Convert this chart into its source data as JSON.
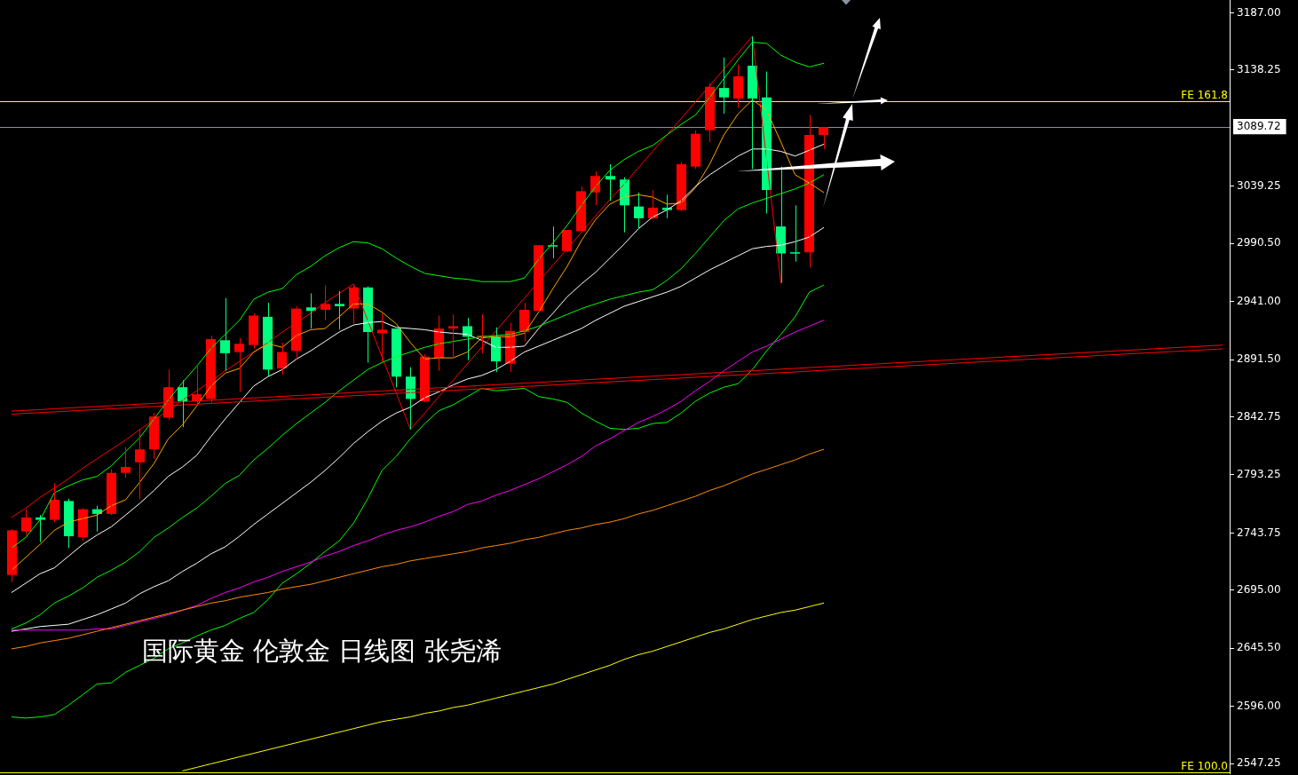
{
  "chart_data": {
    "type": "candlestick",
    "annotations": [
      "国际黄金 伦敦金 日线图 张尧浠"
    ],
    "tick_labels": "y",
    "marker": "none",
    "categories": [
      null,
      null,
      null,
      null,
      null,
      null,
      null,
      null,
      null,
      null,
      null,
      null,
      null,
      null,
      null,
      null,
      null,
      null,
      null,
      null,
      null,
      null,
      null,
      null,
      null,
      null,
      null,
      null,
      null,
      null,
      null,
      null,
      null,
      null,
      null,
      null,
      null,
      null,
      null,
      null,
      null,
      null,
      null,
      null,
      null,
      null,
      null,
      null,
      null,
      null,
      null,
      null,
      null,
      null,
      null,
      null,
      null,
      null,
      null,
      null,
      null,
      null,
      null,
      null,
      null,
      null,
      null,
      null,
      null,
      null,
      null,
      null,
      null,
      null,
      null,
      null,
      null,
      null,
      null,
      null,
      null,
      null,
      null,
      null,
      null,
      null
    ],
    "ohlc": [
      [
        2708,
        2747,
        2702,
        2746
      ],
      [
        2745,
        2764,
        2742,
        2757
      ],
      [
        2757,
        2759,
        2736,
        2755
      ],
      [
        2755,
        2786,
        2753,
        2772
      ],
      [
        2771,
        2773,
        2731,
        2741
      ],
      [
        2740,
        2765,
        2737,
        2764
      ],
      [
        2764,
        2767,
        2745,
        2760
      ],
      [
        2760,
        2798,
        2759,
        2795
      ],
      [
        2795,
        2817,
        2791,
        2800
      ],
      [
        2804,
        2832,
        2773,
        2815
      ],
      [
        2815,
        2846,
        2807,
        2843
      ],
      [
        2842,
        2883,
        2840,
        2868
      ],
      [
        2868,
        2874,
        2834,
        2856
      ],
      [
        2856,
        2887,
        2853,
        2862
      ],
      [
        2858,
        2912,
        2855,
        2909
      ],
      [
        2908,
        2944,
        2882,
        2897
      ],
      [
        2898,
        2910,
        2864,
        2905
      ],
      [
        2904,
        2931,
        2901,
        2929
      ],
      [
        2928,
        2940,
        2877,
        2883
      ],
      [
        2884,
        2906,
        2879,
        2898
      ],
      [
        2899,
        2937,
        2892,
        2935
      ],
      [
        2936,
        2948,
        2918,
        2933
      ],
      [
        2934,
        2955,
        2925,
        2939
      ],
      [
        2939,
        2950,
        2917,
        2937
      ],
      [
        2935,
        2956,
        2922,
        2953
      ],
      [
        2953,
        2954,
        2889,
        2915
      ],
      [
        2914,
        2931,
        2890,
        2917
      ],
      [
        2918,
        2918,
        2868,
        2877
      ],
      [
        2877,
        2885,
        2832,
        2858
      ],
      [
        2856,
        2896,
        2855,
        2894
      ],
      [
        2893,
        2929,
        2882,
        2918
      ],
      [
        2918,
        2930,
        2894,
        2920
      ],
      [
        2920,
        2927,
        2891,
        2911
      ],
      [
        2911,
        2930,
        2897,
        2912
      ],
      [
        2911,
        2919,
        2881,
        2890
      ],
      [
        2888,
        2923,
        2881,
        2916
      ],
      [
        2915,
        2940,
        2907,
        2934
      ],
      [
        2933,
        2989,
        2932,
        2989
      ],
      [
        2989,
        3005,
        2978,
        2988
      ],
      [
        2984,
        3002,
        2983,
        3002
      ],
      [
        3001,
        3039,
        3001,
        3035
      ],
      [
        3034,
        3052,
        3023,
        3048
      ],
      [
        3048,
        3058,
        3027,
        3045
      ],
      [
        3045,
        3047,
        3000,
        3023
      ],
      [
        3022,
        3034,
        3003,
        3012
      ],
      [
        3012,
        3036,
        3011,
        3021
      ],
      [
        3021,
        3032,
        3012,
        3019
      ],
      [
        3019,
        3060,
        3018,
        3058
      ],
      [
        3056,
        3087,
        3054,
        3084
      ],
      [
        3087,
        3127,
        3077,
        3124
      ],
      [
        3123,
        3149,
        3101,
        3115
      ],
      [
        3114,
        3143,
        3106,
        3133
      ],
      [
        3142,
        3167,
        3054,
        3114
      ],
      [
        3115,
        3137,
        3016,
        3036
      ],
      [
        3005,
        3056,
        2957,
        2982
      ],
      [
        2983,
        3023,
        2975,
        2982
      ],
      [
        2983,
        3100,
        2970,
        3083
      ],
      [
        3083,
        3089.72,
        3071,
        3089.72
      ],
      null,
      null,
      null,
      null,
      null,
      null,
      null,
      null,
      null,
      null,
      null,
      null,
      null,
      null,
      null,
      null,
      null,
      null,
      null,
      null,
      null,
      null,
      null,
      null,
      null,
      null,
      null,
      null
    ],
    "colors": [
      "#ff0000",
      "#ff0000",
      "#00ff7f",
      "#ff0000",
      "#00ff7f",
      "#ff0000",
      "#00ff7f",
      "#ff0000",
      "#ff0000",
      "#ff0000",
      "#ff0000",
      "#ff0000",
      "#00ff7f",
      "#ff0000",
      "#ff0000",
      "#00ff7f",
      "#ff0000",
      "#ff0000",
      "#00ff7f",
      "#ff0000",
      "#ff0000",
      "#00ff7f",
      "#ff0000",
      "#00ff7f",
      "#ff0000",
      "#00ff7f",
      "#ff0000",
      "#00ff7f",
      "#00ff7f",
      "#ff0000",
      "#ff0000",
      "#ff0000",
      "#00ff7f",
      "#ff0000",
      "#00ff7f",
      "#ff0000",
      "#ff0000",
      "#ff0000",
      "#00ff7f",
      "#ff0000",
      "#ff0000",
      "#ff0000",
      "#00ff7f",
      "#00ff7f",
      "#00ff7f",
      "#ff0000",
      "#00ff7f",
      "#ff0000",
      "#ff0000",
      "#ff0000",
      "#00ff7f",
      "#ff0000",
      "#00ff7f",
      "#00ff7f",
      "#00ff7f",
      "#00ff7f",
      "#ff0000",
      "#ff0000",
      null,
      null,
      null,
      null,
      null,
      null,
      null,
      null,
      null,
      null,
      null,
      null,
      null,
      null,
      null,
      null,
      null,
      null,
      null,
      null,
      null,
      null,
      null,
      null,
      null,
      null,
      null,
      null
    ],
    "series": [
      {
        "type": "line",
        "color": "#ff0000",
        "values": [
          2847.6,
          2848.3,
          2848.9,
          2849.6,
          2850.3,
          2850.9,
          2851.6,
          2852.2,
          2852.9,
          2853.6,
          2854.2,
          2854.9,
          2855.6,
          2856.2,
          2856.9,
          2857.5,
          2858.2,
          2858.9,
          2859.5,
          2860.2,
          2860.9,
          2861.5,
          2862.2,
          2862.8,
          2863.5,
          2864.2,
          2864.8,
          2865.5,
          2866.1,
          2866.8,
          2867.5,
          2868.1,
          2868.8,
          2869.5,
          2870.1,
          2870.8,
          2871.5,
          2872.1,
          2872.8,
          2873.4,
          2874.1,
          2874.8,
          2875.4,
          2876.1,
          2876.8,
          2877.4,
          2878.1,
          2878.7,
          2879.4,
          2880.1,
          2880.7,
          2881.4,
          2882.0,
          2882.7,
          2883.4,
          2884.0,
          2884.7,
          2885.4,
          2886.0,
          2886.7,
          2887.4,
          2888.0,
          2888.7,
          2889.3,
          2890.0,
          2890.7,
          2891.3,
          2892.0,
          2892.7,
          2893.3,
          2894.0,
          2894.6,
          2895.3,
          2896.0,
          2896.6,
          2897.3,
          2897.9,
          2898.6,
          2899.3,
          2899.9,
          2900.6,
          2901.3,
          2901.9,
          2902.6,
          2903.3,
          2903.9
        ]
      },
      {
        "type": "line",
        "color": "#ff0000",
        "values": [
          2845.0,
          2845.7,
          2846.3,
          2847.0,
          2847.6,
          2848.3,
          2848.9,
          2849.6,
          2850.2,
          2850.9,
          2851.6,
          2852.2,
          2852.9,
          2853.5,
          2854.2,
          2854.8,
          2855.5,
          2856.1,
          2856.8,
          2857.5,
          2858.1,
          2858.8,
          2859.4,
          2860.1,
          2860.7,
          2861.4,
          2862.0,
          2862.7,
          2863.3,
          2864.0,
          2864.7,
          2865.3,
          2866.0,
          2866.6,
          2867.3,
          2867.9,
          2868.6,
          2869.2,
          2869.9,
          2870.6,
          2871.2,
          2871.9,
          2872.5,
          2873.2,
          2873.8,
          2874.5,
          2875.1,
          2875.8,
          2876.5,
          2877.1,
          2877.8,
          2878.4,
          2879.1,
          2879.7,
          2880.4,
          2881.0,
          2881.7,
          2882.4,
          2883.0,
          2883.7,
          2884.3,
          2885.0,
          2885.6,
          2886.3,
          2886.9,
          2887.6,
          2888.2,
          2888.9,
          2889.6,
          2890.2,
          2890.9,
          2891.5,
          2892.2,
          2892.8,
          2893.5,
          2894.1,
          2894.8,
          2895.5,
          2896.1,
          2896.8,
          2897.4,
          2898.1,
          2898.7,
          2899.4,
          2900.0,
          2900.7
        ]
      },
      {
        "type": "line",
        "color": "#ffff00",
        "values": [
          null,
          null,
          null,
          null,
          null,
          null,
          null,
          null,
          null,
          null,
          null,
          null,
          2541,
          2544,
          2547,
          2550,
          2553,
          2556,
          2559,
          2562,
          2565,
          2568,
          2571,
          2574,
          2577,
          2580,
          2583,
          2585,
          2587,
          2590,
          2592,
          2595,
          2597,
          2600,
          2603,
          2606,
          2609,
          2612,
          2615,
          2619,
          2623,
          2627,
          2631,
          2636,
          2640,
          2643,
          2647,
          2651,
          2655,
          2659,
          2662,
          2666,
          2670,
          2673,
          2676,
          2678,
          2681,
          2684,
          null,
          null,
          null,
          null,
          null,
          null,
          null,
          null,
          null,
          null,
          null,
          null,
          null,
          null,
          null,
          null,
          null,
          null,
          null,
          null,
          null,
          null,
          null,
          null,
          null,
          null,
          null,
          null
        ]
      },
      {
        "type": "line",
        "color": "#ff8c00",
        "values": [
          2645,
          2647,
          2650,
          2652,
          2654,
          2657,
          2660,
          2663,
          2666,
          2669,
          2672,
          2675,
          2678,
          2681,
          2684,
          2686,
          2689,
          2691,
          2693,
          2696,
          2698,
          2700,
          2703,
          2706,
          2709,
          2712,
          2715,
          2717,
          2720,
          2722,
          2724,
          2726,
          2728,
          2731,
          2733,
          2735,
          2738,
          2740,
          2743,
          2746,
          2748,
          2751,
          2753,
          2756,
          2760,
          2763,
          2767,
          2771,
          2775,
          2780,
          2784,
          2789,
          2794,
          2798,
          2802,
          2806,
          2811,
          2815,
          null,
          null,
          null,
          null,
          null,
          null,
          null,
          null,
          null,
          null,
          null,
          null,
          null,
          null,
          null,
          null,
          null,
          null,
          null,
          null,
          null,
          null,
          null,
          null,
          null,
          null,
          null,
          null
        ]
      },
      {
        "type": "line",
        "color": "#ff00ff",
        "values": [
          2661,
          2661,
          2661,
          2661,
          2661,
          2661,
          2662,
          2662,
          2665,
          2668,
          2671,
          2674,
          2678,
          2682,
          2688,
          2693,
          2697,
          2702,
          2706,
          2711,
          2715,
          2719,
          2724,
          2728,
          2733,
          2737,
          2742,
          2746,
          2749,
          2753,
          2758,
          2762,
          2768,
          2771,
          2776,
          2780,
          2785,
          2790,
          2796,
          2802,
          2809,
          2818,
          2824,
          2831,
          2838,
          2843,
          2849,
          2856,
          2865,
          2873,
          2882,
          2890,
          2898,
          2903,
          2909,
          2915,
          2920,
          2925,
          null,
          null,
          null,
          null,
          null,
          null,
          null,
          null,
          null,
          null,
          null,
          null,
          null,
          null,
          null,
          null,
          null,
          null,
          null,
          null,
          null,
          null,
          null,
          null,
          null,
          null,
          null,
          null
        ]
      },
      {
        "type": "line",
        "color": "#00ff00",
        "values": [
          2587,
          2586,
          2587,
          2589,
          2597,
          2606,
          2615,
          2616,
          2625,
          2631,
          2637,
          2645,
          2650,
          2656,
          2661,
          2665,
          2671,
          2676,
          2687,
          2701,
          2709,
          2718,
          2728,
          2737,
          2752,
          2773,
          2797,
          2809,
          2824,
          2837,
          2848,
          2853,
          2860,
          2867,
          2865,
          2866,
          2867,
          2860,
          2858,
          2855,
          2846,
          2839,
          2833,
          2832,
          2833,
          2837,
          2838,
          2846,
          2856,
          2863,
          2868,
          2871,
          2883,
          2899,
          2913,
          2928,
          2949,
          2955,
          null,
          null,
          null,
          null,
          null,
          null,
          null,
          null,
          null,
          null,
          null,
          null,
          null,
          null,
          null,
          null,
          null,
          null,
          null,
          null,
          null,
          null,
          null,
          null,
          null,
          null,
          null,
          null
        ]
      },
      {
        "type": "line",
        "color": "#00ff00",
        "values": [
          2662,
          2667,
          2674,
          2684,
          2690,
          2697,
          2706,
          2712,
          2719,
          2728,
          2740,
          2748,
          2757,
          2765,
          2775,
          2786,
          2793,
          2806,
          2816,
          2827,
          2837,
          2846,
          2855,
          2865,
          2874,
          2883,
          2889,
          2894,
          2898,
          2902,
          2905,
          2907,
          2909,
          2911,
          2912,
          2913,
          2916,
          2920,
          2925,
          2930,
          2935,
          2939,
          2943,
          2946,
          2949,
          2951,
          2959,
          2969,
          2982,
          2996,
          3010,
          3020,
          3025,
          3029,
          3033,
          3037,
          3042,
          3049,
          null,
          null,
          null,
          null,
          null,
          null,
          null,
          null,
          null,
          null,
          null,
          null,
          null,
          null,
          null,
          null,
          null,
          null,
          null,
          null,
          null,
          null,
          null,
          null,
          null,
          null,
          null,
          null
        ]
      },
      {
        "type": "line",
        "color": "#00ff00",
        "values": [
          2731,
          2740,
          2755,
          2778,
          2784,
          2789,
          2792,
          2801,
          2813,
          2825,
          2841,
          2857,
          2872,
          2886,
          2901,
          2913,
          2925,
          2943,
          2949,
          2952,
          2964,
          2971,
          2980,
          2987,
          2992,
          2991,
          2986,
          2978,
          2971,
          2965,
          2963,
          2961,
          2960,
          2958,
          2958,
          2958,
          2961,
          2977,
          2991,
          3006,
          3023,
          3039,
          3053,
          3062,
          3069,
          3074,
          3083,
          3092,
          3100,
          3115,
          3131,
          3147,
          3162,
          3161,
          3151,
          3145,
          3141,
          3144,
          null,
          null,
          null,
          null,
          null,
          null,
          null,
          null,
          null,
          null,
          null,
          null,
          null,
          null,
          null,
          null,
          null,
          null,
          null,
          null,
          null,
          null,
          null,
          null,
          null,
          null,
          null,
          null
        ]
      },
      {
        "type": "line",
        "color": "#ffffff",
        "values": [
          2660,
          2662,
          2664,
          2665,
          2666,
          2670,
          2674,
          2679,
          2684,
          2692,
          2698,
          2703,
          2711,
          2718,
          2726,
          2732,
          2741,
          2751,
          2760,
          2769,
          2778,
          2787,
          2797,
          2808,
          2820,
          2830,
          2839,
          2846,
          2851,
          2859,
          2864,
          2870,
          2875,
          2878,
          2883,
          2890,
          2898,
          2903,
          2908,
          2913,
          2918,
          2925,
          2931,
          2937,
          2941,
          2945,
          2949,
          2954,
          2961,
          2968,
          2974,
          2980,
          2986,
          2988,
          2989,
          2992,
          2996,
          3004,
          null,
          null,
          null,
          null,
          null,
          null,
          null,
          null,
          null,
          null,
          null,
          null,
          null,
          null,
          null,
          null,
          null,
          null,
          null,
          null,
          null,
          null,
          null,
          null,
          null,
          null,
          null,
          null
        ]
      },
      {
        "type": "line",
        "color": "#ffffff",
        "values": [
          2693,
          2701,
          2709,
          2714,
          2724,
          2734,
          2742,
          2749,
          2759,
          2769,
          2780,
          2792,
          2800,
          2810,
          2826,
          2841,
          2855,
          2869,
          2877,
          2883,
          2892,
          2899,
          2907,
          2915,
          2921,
          2923,
          2924,
          2919,
          2918,
          2917,
          2915,
          2914,
          2913,
          2908,
          2902,
          2902,
          2903,
          2918,
          2931,
          2945,
          2956,
          2966,
          2978,
          2990,
          3003,
          3013,
          3019,
          3027,
          3039,
          3049,
          3057,
          3065,
          3071,
          3071,
          3069,
          3065,
          3070,
          3075,
          null,
          null,
          null,
          null,
          null,
          null,
          null,
          null,
          null,
          null,
          null,
          null,
          null,
          null,
          null,
          null,
          null,
          null,
          null,
          null,
          null,
          null,
          null,
          null,
          null,
          null,
          null,
          null
        ]
      },
      {
        "type": "line",
        "color": "#ffa500",
        "values": [
          2712,
          2723,
          2734,
          2746,
          2753,
          2756,
          2759,
          2767,
          2772,
          2787,
          2803,
          2824,
          2836,
          2852,
          2869,
          2880,
          2884,
          2898,
          2905,
          2902,
          2912,
          2917,
          2918,
          2928,
          2939,
          2939,
          2932,
          2922,
          2906,
          2892,
          2893,
          2893,
          2898,
          2910,
          2911,
          2911,
          2914,
          2932,
          2952,
          2971,
          2993,
          3011,
          3024,
          3030,
          3032,
          3030,
          3024,
          3025,
          3038,
          3058,
          3083,
          3101,
          3113,
          3104,
          3077,
          3049,
          3042,
          3034,
          null,
          null,
          null,
          null,
          null,
          null,
          null,
          null,
          null,
          null,
          null,
          null,
          null,
          null,
          null,
          null,
          null,
          null,
          null,
          null,
          null,
          null,
          null,
          null,
          null,
          null,
          null,
          null
        ]
      },
      {
        "type": "line",
        "color": "#ff0000",
        "values": [
          2757,
          2765,
          2774,
          2782,
          2790,
          2799,
          2807,
          2815,
          2823,
          2832,
          2840,
          2848,
          2857,
          2865,
          2873,
          2882,
          2890,
          2898,
          2906,
          2915,
          2923,
          2931,
          2940,
          2948,
          2956,
          2925,
          2894,
          2863,
          2832,
          2846,
          2860,
          2874,
          2888,
          2902,
          2916,
          2930,
          2944,
          2958,
          2972,
          2986,
          3000,
          3014,
          3028,
          3041,
          3055,
          3069,
          3083,
          3097,
          3111,
          3125,
          3139,
          3153,
          3167,
          3062,
          2957,
          null,
          null,
          null,
          null,
          null,
          null,
          null,
          null,
          null,
          null,
          null,
          null,
          null,
          null,
          null,
          null,
          null,
          null,
          null,
          null,
          null,
          null,
          null,
          null,
          null,
          null,
          null,
          null,
          null,
          null,
          null
        ]
      }
    ],
    "ylim": [
      2539,
      3198
    ],
    "yticks": [
      {
        "value": 3187,
        "label": "3187.00"
      },
      {
        "value": 3138.25,
        "label": "3138.25"
      },
      {
        "value": 3089.72,
        "label": "3089.72"
      },
      {
        "value": 3039.25,
        "label": "3039.25"
      },
      {
        "value": 2990.5,
        "label": "2990.50"
      },
      {
        "value": 2941,
        "label": "2941.00"
      },
      {
        "value": 2891.5,
        "label": "2891.50"
      },
      {
        "value": 2842.75,
        "label": "2842.75"
      },
      {
        "value": 2793.25,
        "label": "2793.25"
      },
      {
        "value": 2743.75,
        "label": "2743.75"
      },
      {
        "value": 2695,
        "label": "2695.00"
      },
      {
        "value": 2645.5,
        "label": "2645.50"
      },
      {
        "value": 2596,
        "label": "2596.00"
      },
      {
        "value": 2547.25,
        "label": "2547.25"
      }
    ],
    "ref_lines": [
      {
        "axis": "y",
        "value": 3112,
        "label": "FE 161.8",
        "color": "#ffff00"
      },
      {
        "axis": "y",
        "value": 3089.72,
        "color": "#8c8f99"
      },
      {
        "axis": "y",
        "value": 2540,
        "label": "FE 100.0",
        "color": "#ffff00"
      }
    ]
  }
}
